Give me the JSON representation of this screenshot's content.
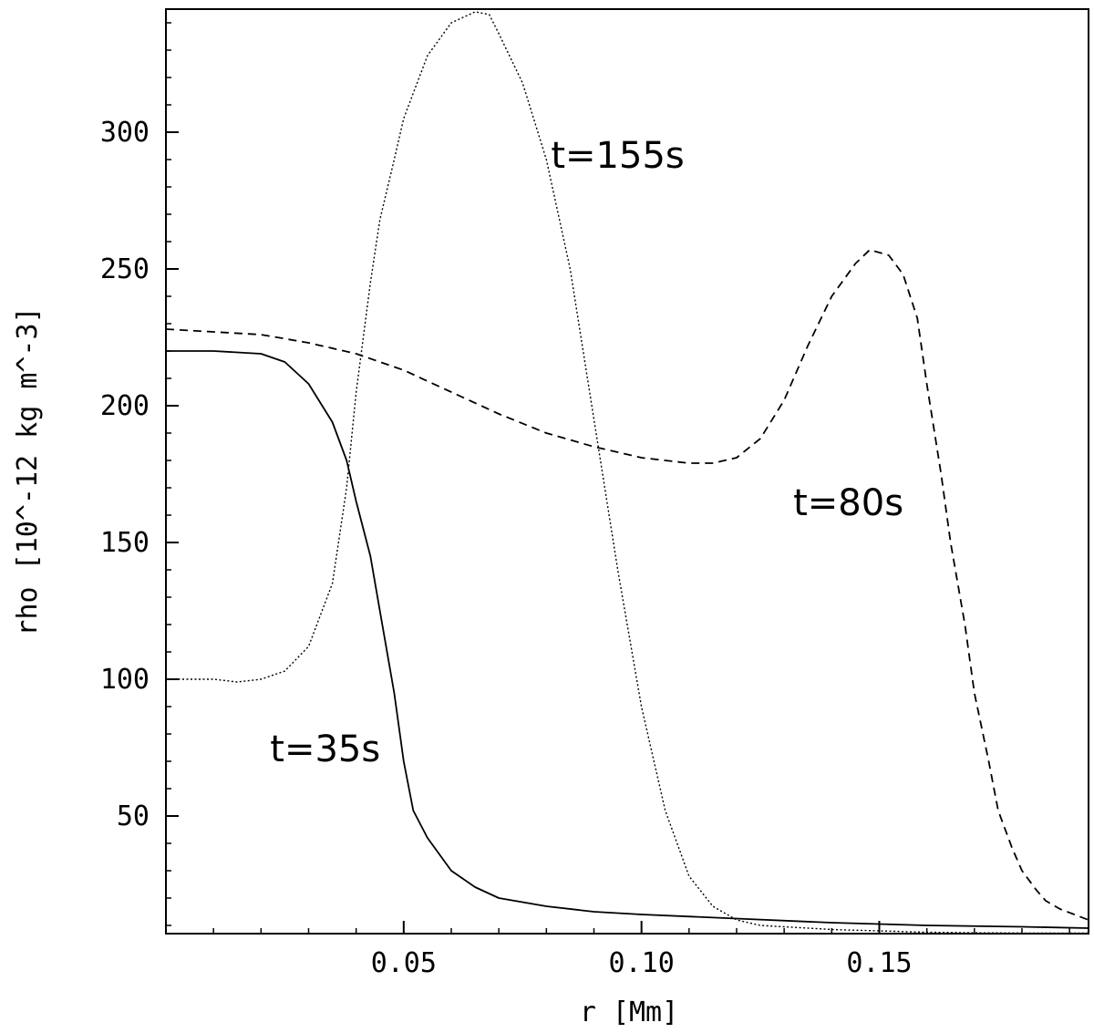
{
  "chart_data": {
    "type": "line",
    "title": "",
    "xlabel": "r [Mm]",
    "ylabel": "rho [10^-12 kg m^-3]",
    "xlim": [
      0.0,
      0.194
    ],
    "ylim": [
      7,
      345
    ],
    "x_ticks": [
      0.05,
      0.1,
      0.15
    ],
    "x_tick_labels": [
      "0.05",
      "0.10",
      "0.15"
    ],
    "y_ticks": [
      50,
      100,
      150,
      200,
      250,
      300
    ],
    "y_tick_labels": [
      "50",
      "100",
      "150",
      "200",
      "250",
      "300"
    ],
    "grid": false,
    "legend": "none",
    "series": [
      {
        "name": "t=35s",
        "style": "solid",
        "x": [
          0.0,
          0.01,
          0.02,
          0.025,
          0.03,
          0.035,
          0.038,
          0.04,
          0.043,
          0.045,
          0.048,
          0.05,
          0.052,
          0.055,
          0.06,
          0.065,
          0.07,
          0.08,
          0.09,
          0.1,
          0.12,
          0.14,
          0.16,
          0.18,
          0.194
        ],
        "y": [
          220,
          220,
          219,
          216,
          208,
          194,
          180,
          165,
          145,
          125,
          95,
          70,
          52,
          42,
          30,
          24,
          20,
          17,
          15,
          14,
          12.5,
          11,
          10,
          9.5,
          9
        ]
      },
      {
        "name": "t=80s",
        "style": "dashed",
        "x": [
          0.0,
          0.01,
          0.02,
          0.03,
          0.04,
          0.05,
          0.06,
          0.07,
          0.08,
          0.09,
          0.1,
          0.11,
          0.115,
          0.12,
          0.125,
          0.13,
          0.135,
          0.14,
          0.145,
          0.148,
          0.152,
          0.155,
          0.158,
          0.16,
          0.163,
          0.165,
          0.168,
          0.17,
          0.173,
          0.175,
          0.178,
          0.18,
          0.183,
          0.185,
          0.188,
          0.191,
          0.194
        ],
        "y": [
          228,
          227,
          226,
          223,
          219,
          213,
          205,
          197,
          190,
          185,
          181,
          179,
          179,
          181,
          188,
          202,
          222,
          240,
          252,
          257,
          255,
          248,
          232,
          208,
          175,
          150,
          120,
          95,
          70,
          52,
          38,
          30,
          23,
          19,
          16,
          14,
          12
        ]
      },
      {
        "name": "t=155s",
        "style": "dotted",
        "x": [
          0.0,
          0.01,
          0.015,
          0.02,
          0.025,
          0.03,
          0.035,
          0.038,
          0.04,
          0.043,
          0.045,
          0.048,
          0.05,
          0.055,
          0.06,
          0.065,
          0.068,
          0.07,
          0.075,
          0.08,
          0.085,
          0.09,
          0.095,
          0.1,
          0.105,
          0.11,
          0.115,
          0.12,
          0.125,
          0.13,
          0.14,
          0.15,
          0.16,
          0.17,
          0.18,
          0.194
        ],
        "y": [
          100,
          100,
          99,
          100,
          103,
          112,
          135,
          170,
          205,
          245,
          268,
          290,
          305,
          328,
          340,
          344,
          343,
          336,
          318,
          290,
          250,
          195,
          140,
          90,
          52,
          28,
          17,
          12,
          10,
          9.5,
          8.5,
          8,
          7.5,
          7.3,
          7.2,
          7.2
        ]
      }
    ],
    "annotations": [
      {
        "text": "t=35s",
        "x": 0.0335,
        "y": 70
      },
      {
        "text": "t=80s",
        "x": 0.1435,
        "y": 160
      },
      {
        "text": "t=155s",
        "x": 0.095,
        "y": 287
      }
    ]
  }
}
